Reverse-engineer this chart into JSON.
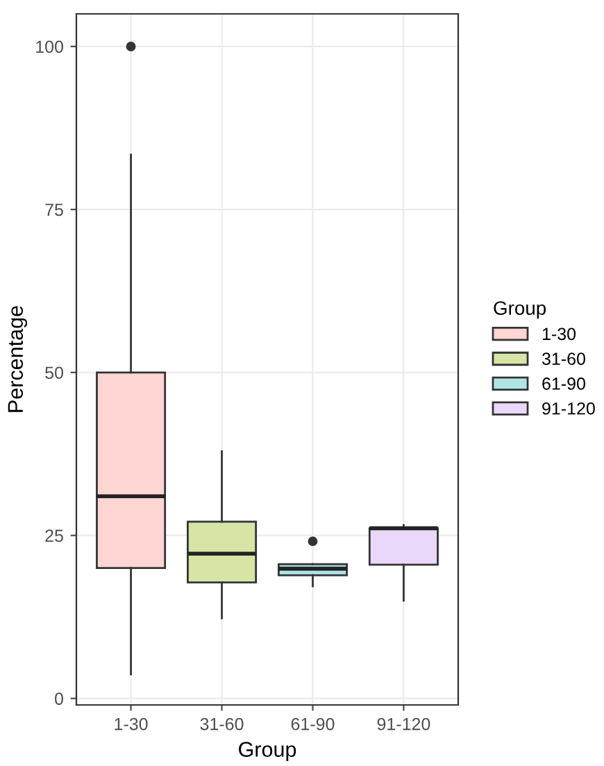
{
  "chart_data": {
    "type": "box",
    "xlabel": "Group",
    "ylabel": "Percentage",
    "legend_title": "Group",
    "categories": [
      "1-30",
      "31-60",
      "61-90",
      "91-120"
    ],
    "series": [
      {
        "name": "1-30",
        "color": "#fdd5d3",
        "boxes": [
          {
            "low": 3.7,
            "q1": 20.0,
            "median": 31.0,
            "q3": 50.0,
            "high": 83.4,
            "outliers": [
              100
            ]
          },
          null,
          null,
          null
        ]
      },
      {
        "name": "31-60",
        "color": "#d6e5a6",
        "boxes": [
          null,
          {
            "low": 12.3,
            "q1": 17.8,
            "median": 22.2,
            "q3": 27.1,
            "high": 37.9
          },
          null,
          null
        ]
      },
      {
        "name": "61-90",
        "color": "#b0e5e5",
        "boxes": [
          null,
          null,
          {
            "low": 17.2,
            "q1": 18.9,
            "median": 19.9,
            "q3": 20.6,
            "high": 20.6,
            "outliers": [
              24.1
            ]
          },
          null
        ]
      },
      {
        "name": "91-120",
        "color": "#ead8fb",
        "boxes": [
          null,
          null,
          null,
          {
            "low": 15.0,
            "q1": 20.5,
            "median": 26.1,
            "q3": 26.1,
            "high": 26.6
          }
        ]
      }
    ],
    "ylim": [
      -1,
      105
    ],
    "yticks": [
      0,
      25,
      50,
      75,
      100
    ],
    "grid": true,
    "legend": "right"
  }
}
